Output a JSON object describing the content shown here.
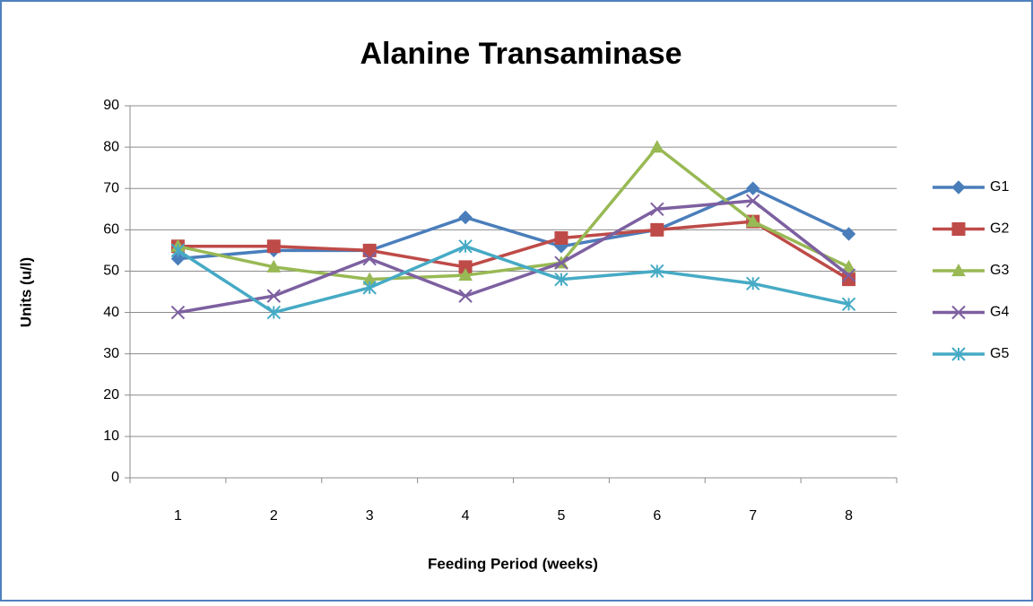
{
  "chart_data": {
    "type": "line",
    "title": "Alanine Transaminase",
    "x_label": "Feeding Period (weeks)",
    "y_label": "Units (u/l)",
    "categories": [
      "1",
      "2",
      "3",
      "4",
      "5",
      "6",
      "7",
      "8"
    ],
    "series": [
      {
        "name": "G1",
        "color": "#4a7ebb",
        "marker": "diamond",
        "values": [
          53,
          55,
          55,
          63,
          56,
          60,
          70,
          59
        ]
      },
      {
        "name": "G2",
        "color": "#be4b48",
        "marker": "square",
        "values": [
          56,
          56,
          55,
          51,
          58,
          60,
          62,
          48
        ]
      },
      {
        "name": "G3",
        "color": "#98b954",
        "marker": "triangle",
        "values": [
          56,
          51,
          48,
          49,
          52,
          80,
          62,
          51
        ]
      },
      {
        "name": "G4",
        "color": "#7d60a0",
        "marker": "x",
        "values": [
          40,
          44,
          53,
          44,
          52,
          65,
          67,
          49
        ]
      },
      {
        "name": "G5",
        "color": "#46aac5",
        "marker": "star",
        "values": [
          55,
          40,
          46,
          56,
          48,
          50,
          47,
          42
        ]
      }
    ],
    "ylim": [
      0,
      90
    ],
    "yticks": [
      0,
      10,
      20,
      30,
      40,
      50,
      60,
      70,
      80,
      90
    ],
    "grid": true,
    "legend": "right"
  }
}
